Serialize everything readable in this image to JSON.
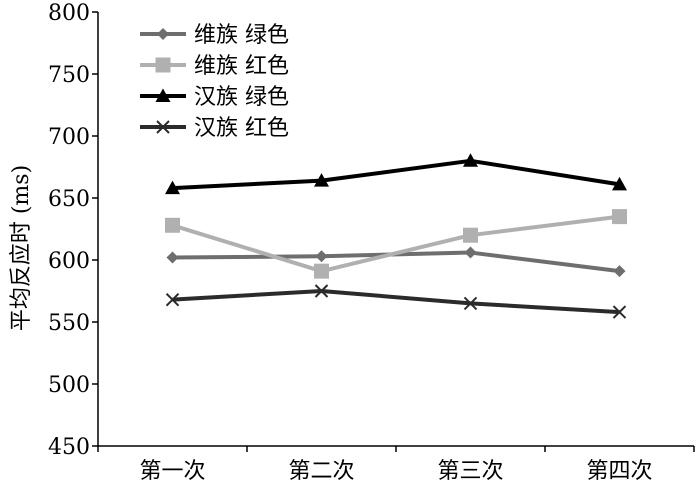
{
  "chart_data": {
    "type": "line",
    "ylabel": "平均反应时 (ms)",
    "xlabel": "",
    "categories": [
      "第一次",
      "第二次",
      "第三次",
      "第四次"
    ],
    "ylim": [
      450,
      800
    ],
    "yticks": [
      450,
      500,
      550,
      600,
      650,
      700,
      750,
      800
    ],
    "grid": false,
    "legend_position": "top-left",
    "series": [
      {
        "name": "维族 绿色",
        "values": [
          602,
          603,
          606,
          591
        ],
        "color": "#6e6e6e",
        "marker": "diamond"
      },
      {
        "name": "维族 红色",
        "values": [
          628,
          591,
          620,
          635
        ],
        "color": "#b0b0b0",
        "marker": "square"
      },
      {
        "name": "汉族 绿色",
        "values": [
          658,
          664,
          680,
          661
        ],
        "color": "#000000",
        "marker": "triangle"
      },
      {
        "name": "汉族 红色",
        "values": [
          568,
          575,
          565,
          558
        ],
        "color": "#2b2b2b",
        "marker": "x"
      }
    ]
  }
}
